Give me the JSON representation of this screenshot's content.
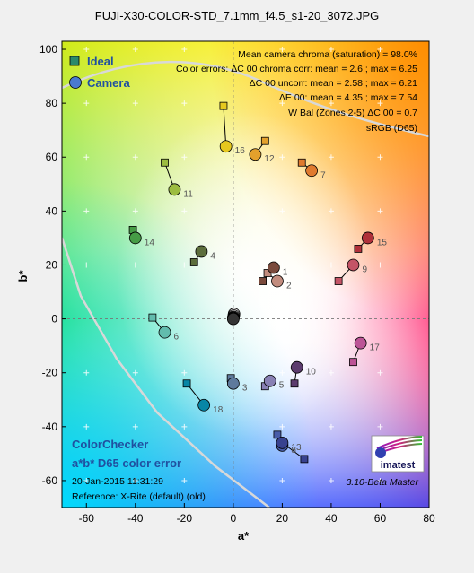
{
  "title": "FUJI-X30-COLOR-STD_7.1mm_f4.5_s1-20_3072.JPG",
  "chart_data": {
    "type": "scatter",
    "xlabel": "a*",
    "ylabel": "b*",
    "xlim": [
      -70,
      80
    ],
    "ylim": [
      -70,
      103
    ],
    "x_ticks": [
      -60,
      -40,
      -20,
      0,
      20,
      40,
      60,
      80
    ],
    "y_ticks": [
      -60,
      -40,
      -20,
      0,
      20,
      40,
      60,
      80,
      100
    ],
    "grid": true,
    "legend": {
      "position": "top-left",
      "entries": [
        {
          "name": "Ideal",
          "marker": "square"
        },
        {
          "name": "Camera",
          "marker": "circle"
        }
      ]
    },
    "stats": [
      "Mean camera chroma (saturation) = 98.0%",
      "Color errors: ΔC 00 chroma corr:  mean = 2.6 ;  max = 6.25",
      "ΔC 00 uncorr:  mean = 2.58 ;  max = 6.21",
      "ΔE 00:  mean = 4.35 ;  max = 7.54",
      "W Bal (Zones 2-5) ΔC 00 = 0.7",
      "sRGB (D65)"
    ],
    "footer": {
      "name": "ColorChecker",
      "subtitle": "a*b* D65 color error",
      "date": "20-Jan-2015 11:31:29",
      "reference": "Reference: X-Rite (default) (old)",
      "version": "3.10-Beta  Master",
      "logo": "imatest"
    },
    "patches": [
      {
        "id": "1",
        "ideal": [
          12,
          14
        ],
        "camera": [
          16.5,
          19
        ],
        "color": "#7a4a3c"
      },
      {
        "id": "2",
        "ideal": [
          14,
          17
        ],
        "camera": [
          18,
          14
        ],
        "color": "#c28c7e"
      },
      {
        "id": "3",
        "ideal": [
          -1,
          -22
        ],
        "camera": [
          0,
          -24
        ],
        "color": "#5e7a9c"
      },
      {
        "id": "4",
        "ideal": [
          -16,
          21
        ],
        "camera": [
          -13,
          25
        ],
        "color": "#5c6e3c"
      },
      {
        "id": "5",
        "ideal": [
          13,
          -25
        ],
        "camera": [
          15,
          -23
        ],
        "color": "#8880b4"
      },
      {
        "id": "6",
        "ideal": [
          -33,
          0.5
        ],
        "camera": [
          -28,
          -5
        ],
        "color": "#62bcad"
      },
      {
        "id": "7",
        "ideal": [
          28,
          58
        ],
        "camera": [
          32,
          55
        ],
        "color": "#e07a2e"
      },
      {
        "id": "8",
        "ideal": [
          18,
          -43
        ],
        "camera": [
          20,
          -47
        ],
        "color": "#485ca8"
      },
      {
        "id": "9",
        "ideal": [
          43,
          14
        ],
        "camera": [
          49,
          20
        ],
        "color": "#c45466"
      },
      {
        "id": "10",
        "ideal": [
          25,
          -24
        ],
        "camera": [
          26,
          -18
        ],
        "color": "#5c3c6e"
      },
      {
        "id": "11",
        "ideal": [
          -28,
          58
        ],
        "camera": [
          -24,
          48
        ],
        "color": "#9cbc40"
      },
      {
        "id": "12",
        "ideal": [
          13,
          66
        ],
        "camera": [
          9,
          61
        ],
        "color": "#e3a02c"
      },
      {
        "id": "13",
        "ideal": [
          29,
          -52
        ],
        "camera": [
          20,
          -46
        ],
        "color": "#38428f"
      },
      {
        "id": "14",
        "ideal": [
          -41,
          33
        ],
        "camera": [
          -40,
          30
        ],
        "color": "#469c46"
      },
      {
        "id": "15",
        "ideal": [
          51,
          26
        ],
        "camera": [
          55,
          30
        ],
        "color": "#b0303a"
      },
      {
        "id": "16",
        "ideal": [
          -4,
          79
        ],
        "camera": [
          -3,
          64
        ],
        "color": "#e6c81e"
      },
      {
        "id": "17",
        "ideal": [
          49,
          -16
        ],
        "camera": [
          52,
          -9
        ],
        "color": "#bc5496"
      },
      {
        "id": "18",
        "ideal": [
          -19,
          -24
        ],
        "camera": [
          -12,
          -32
        ],
        "color": "#0886a6"
      },
      {
        "id": "",
        "ideal": [
          0,
          0
        ],
        "camera": [
          0.3,
          1.8
        ],
        "color": "#f2f2f2"
      },
      {
        "id": "",
        "ideal": [
          0,
          0
        ],
        "camera": [
          0.2,
          1.2
        ],
        "color": "#c8c8c8"
      },
      {
        "id": "",
        "ideal": [
          0,
          0
        ],
        "camera": [
          0.1,
          0.7
        ],
        "color": "#a0a0a0"
      },
      {
        "id": "",
        "ideal": [
          0,
          0
        ],
        "camera": [
          0,
          0.4
        ],
        "color": "#7a7a7a"
      },
      {
        "id": "",
        "ideal": [
          0,
          0
        ],
        "camera": [
          0,
          0.2
        ],
        "color": "#555555"
      },
      {
        "id": "",
        "ideal": [
          0,
          0
        ],
        "camera": [
          0,
          0
        ],
        "color": "#343434"
      }
    ]
  }
}
